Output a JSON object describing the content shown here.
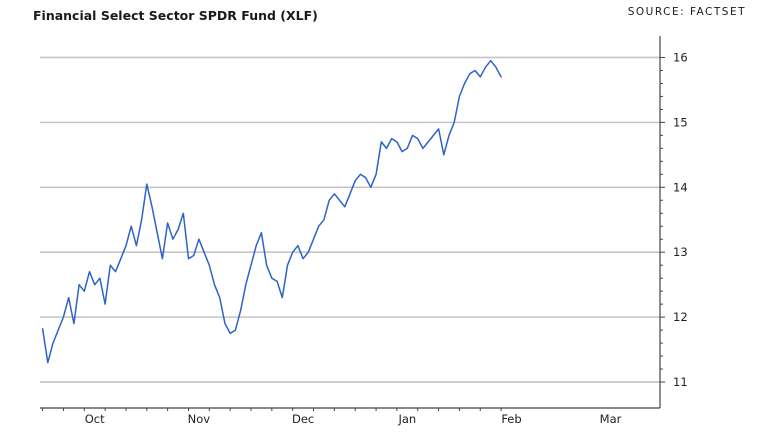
{
  "header": {
    "title": "Financial Select Sector SPDR Fund (XLF)",
    "source": "SOURCE: FACTSET"
  },
  "chart_data": {
    "type": "line",
    "title": "Financial Select Sector SPDR Fund (XLF)",
    "xlabel": "",
    "ylabel": "",
    "ylim": [
      10.6,
      16.3
    ],
    "xlim": [
      -0.5,
      118.5
    ],
    "y_ticks": [
      11,
      12,
      13,
      14,
      15,
      16
    ],
    "y_tick_labels": [
      "11",
      "12",
      "13",
      "14",
      "15",
      "16"
    ],
    "x_ticks": [
      {
        "label": "Oct",
        "x": 10
      },
      {
        "label": "Nov",
        "x": 30
      },
      {
        "label": "Dec",
        "x": 50
      },
      {
        "label": "Jan",
        "x": 70
      },
      {
        "label": "Feb",
        "x": 90
      },
      {
        "label": "Mar",
        "x": 109
      }
    ],
    "grid": true,
    "line_color": "#2f62c8",
    "series": [
      {
        "values": [
          11.82,
          11.3,
          11.6,
          11.8,
          12.0,
          12.3,
          11.9,
          12.5,
          12.4,
          12.7,
          12.5,
          12.6,
          12.2,
          12.8,
          12.7,
          12.9,
          13.1,
          13.4,
          13.1,
          13.5,
          14.05,
          13.7,
          13.3,
          12.9,
          13.45,
          13.2,
          13.35,
          13.6,
          12.9,
          12.95,
          13.2,
          13.0,
          12.8,
          12.5,
          12.3,
          11.9,
          11.75,
          11.8,
          12.1,
          12.5,
          12.8,
          13.1,
          13.3,
          12.8,
          12.6,
          12.55,
          12.3,
          12.8,
          13.0,
          13.1,
          12.9,
          13.0,
          13.2,
          13.4,
          13.5,
          13.8,
          13.9,
          13.8,
          13.7,
          13.9,
          14.1,
          14.2,
          14.15,
          14.0,
          14.2,
          14.7,
          14.6,
          14.75,
          14.7,
          14.55,
          14.6,
          14.8,
          14.75,
          14.6,
          14.7,
          14.8,
          14.9,
          14.5,
          14.8,
          15.0,
          15.4,
          15.6,
          15.75,
          15.8,
          15.7,
          15.85,
          15.95,
          15.85,
          15.7
        ],
        "x": [
          0,
          1,
          2,
          3,
          4,
          5,
          6,
          7,
          8,
          9,
          10,
          11,
          12,
          13,
          14,
          15,
          16,
          17,
          18,
          19,
          20,
          21,
          22,
          23,
          24,
          25,
          26,
          27,
          28,
          29,
          30,
          31,
          32,
          33,
          34,
          35,
          36,
          37,
          38,
          39,
          40,
          41,
          42,
          43,
          44,
          45,
          46,
          47,
          48,
          49,
          50,
          51,
          52,
          53,
          54,
          55,
          56,
          57,
          58,
          59,
          60,
          61,
          62,
          63,
          64,
          65,
          66,
          67,
          68,
          69,
          70,
          71,
          72,
          73,
          74,
          75,
          76,
          77,
          78,
          79,
          80,
          81,
          82,
          83,
          84,
          85,
          86,
          87,
          88
        ]
      }
    ]
  }
}
